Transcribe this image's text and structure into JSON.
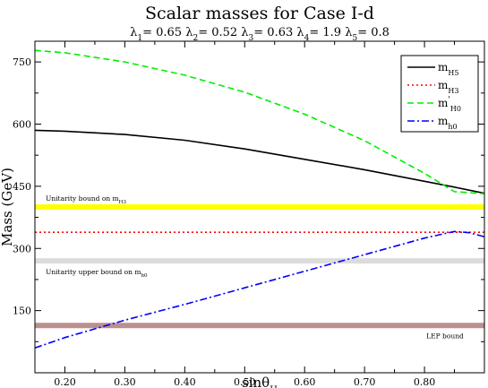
{
  "chart_data": {
    "type": "line",
    "title": "Scalar masses for Case I-d",
    "subtitle": {
      "params": [
        {
          "sym": "λ",
          "sub": "1",
          "val": "= 0.65"
        },
        {
          "sym": "λ",
          "sub": "2",
          "val": "= 0.52"
        },
        {
          "sym": "λ",
          "sub": "3",
          "val": "= 0.63"
        },
        {
          "sym": "λ",
          "sub": "4",
          "val": "= 1.9"
        },
        {
          "sym": "λ",
          "sub": "5",
          "val": "= 0.8"
        }
      ]
    },
    "xlabel": {
      "main": "sinθ",
      "sub": "H"
    },
    "ylabel": "Mass (GeV)",
    "xlim": [
      0.15,
      0.9
    ],
    "ylim": [
      0,
      800
    ],
    "xticks": [
      0.2,
      0.3,
      0.4,
      0.5,
      0.6,
      0.7,
      0.8
    ],
    "xtick_labels": [
      "0.20",
      "0.30",
      "0.40",
      "0.50",
      "0.60",
      "0.70",
      "0.80"
    ],
    "yticks": [
      150,
      300,
      450,
      600,
      750
    ],
    "ytick_labels": [
      "150",
      "300",
      "450",
      "600",
      "750"
    ],
    "legend_position": "top-right",
    "series": [
      {
        "name": "m",
        "sub": "H5",
        "sup": "",
        "color": "#000000",
        "dash": "solid",
        "x": [
          0.15,
          0.2,
          0.3,
          0.4,
          0.5,
          0.6,
          0.7,
          0.8,
          0.85,
          0.9
        ],
        "y": [
          585,
          583,
          575,
          561,
          540,
          515,
          490,
          462,
          448,
          433
        ]
      },
      {
        "name": "m",
        "sub": "H3",
        "sup": "",
        "color": "#ff0000",
        "dash": "dotted",
        "x": [
          0.15,
          0.9
        ],
        "y": [
          339,
          339
        ]
      },
      {
        "name": "m",
        "sub": "H0",
        "sup": "'",
        "color": "#00ee00",
        "dash": "dashed",
        "x": [
          0.15,
          0.2,
          0.3,
          0.4,
          0.5,
          0.6,
          0.7,
          0.8,
          0.85,
          0.9
        ],
        "y": [
          778,
          772,
          750,
          718,
          677,
          624,
          560,
          481,
          437,
          432
        ]
      },
      {
        "name": "m",
        "sub": "h0",
        "sup": "",
        "color": "#0000ff",
        "dash": "dashdot",
        "x": [
          0.15,
          0.2,
          0.3,
          0.4,
          0.5,
          0.6,
          0.7,
          0.8,
          0.85,
          0.875,
          0.9
        ],
        "y": [
          60,
          85,
          127,
          165,
          205,
          245,
          285,
          325,
          341,
          338,
          328
        ]
      }
    ],
    "bands": [
      {
        "label": "Unitarity bound on m",
        "sub": "H3",
        "y": 400,
        "color": "#ffff00",
        "label_pos": "above"
      },
      {
        "label": "Unitarity upper bound on m",
        "sub": "h0",
        "y": 270,
        "color": "#dcdcdc",
        "label_pos": "below"
      },
      {
        "label": "LEP bound",
        "sub": "",
        "y": 114,
        "color": "#bc8f8f",
        "label_pos": "below-right"
      }
    ]
  }
}
